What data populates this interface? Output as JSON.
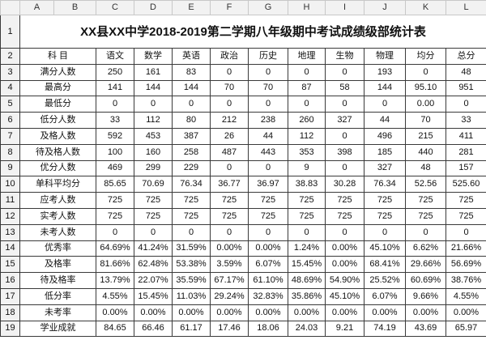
{
  "columns": [
    "A",
    "B",
    "C",
    "D",
    "E",
    "F",
    "G",
    "H",
    "I",
    "J",
    "K",
    "L"
  ],
  "title": "XX县XX中学2018-2019第二学期八年级期中考试成绩级部统计表",
  "header_row": {
    "label": "科 目",
    "subjects": [
      "语文",
      "数学",
      "英语",
      "政治",
      "历史",
      "地理",
      "生物",
      "物理",
      "均分",
      "总分"
    ]
  },
  "rows": [
    {
      "num": "1"
    },
    {
      "num": "2"
    },
    {
      "num": "3",
      "label": "满分人数",
      "label_center": false,
      "values": [
        "250",
        "161",
        "83",
        "0",
        "0",
        "0",
        "0",
        "193",
        "0",
        "48"
      ]
    },
    {
      "num": "4",
      "label": "最高分",
      "label_center": false,
      "values": [
        "141",
        "144",
        "144",
        "70",
        "70",
        "87",
        "58",
        "144",
        "95.10",
        "951"
      ]
    },
    {
      "num": "5",
      "label": "最低分",
      "label_center": false,
      "values": [
        "0",
        "0",
        "0",
        "0",
        "0",
        "0",
        "0",
        "0",
        "0.00",
        "0"
      ]
    },
    {
      "num": "6",
      "label": "低分人数",
      "label_center": false,
      "values": [
        "33",
        "112",
        "80",
        "212",
        "238",
        "260",
        "327",
        "44",
        "70",
        "33"
      ]
    },
    {
      "num": "7",
      "label": "及格人数",
      "label_center": false,
      "values": [
        "592",
        "453",
        "387",
        "26",
        "44",
        "112",
        "0",
        "496",
        "215",
        "411"
      ]
    },
    {
      "num": "8",
      "label": "待及格人数",
      "label_center": false,
      "values": [
        "100",
        "160",
        "258",
        "487",
        "443",
        "353",
        "398",
        "185",
        "440",
        "281"
      ]
    },
    {
      "num": "9",
      "label": "优分人数",
      "label_center": false,
      "values": [
        "469",
        "299",
        "229",
        "0",
        "0",
        "9",
        "0",
        "327",
        "48",
        "157"
      ]
    },
    {
      "num": "10",
      "label": "单科平均分",
      "label_center": false,
      "values": [
        "85.65",
        "70.69",
        "76.34",
        "36.77",
        "36.97",
        "38.83",
        "30.28",
        "76.34",
        "52.56",
        "525.60"
      ]
    },
    {
      "num": "11",
      "label": "应考人数",
      "label_center": false,
      "values": [
        "725",
        "725",
        "725",
        "725",
        "725",
        "725",
        "725",
        "725",
        "725",
        "725"
      ]
    },
    {
      "num": "12",
      "label": "实考人数",
      "label_center": false,
      "values": [
        "725",
        "725",
        "725",
        "725",
        "725",
        "725",
        "725",
        "725",
        "725",
        "725"
      ]
    },
    {
      "num": "13",
      "label": "未考人数",
      "label_center": false,
      "values": [
        "0",
        "0",
        "0",
        "0",
        "0",
        "0",
        "0",
        "0",
        "0",
        "0"
      ]
    },
    {
      "num": "14",
      "label": "优秀率",
      "label_center": true,
      "values": [
        "64.69%",
        "41.24%",
        "31.59%",
        "0.00%",
        "0.00%",
        "1.24%",
        "0.00%",
        "45.10%",
        "6.62%",
        "21.66%"
      ]
    },
    {
      "num": "15",
      "label": "及格率",
      "label_center": true,
      "values": [
        "81.66%",
        "62.48%",
        "53.38%",
        "3.59%",
        "6.07%",
        "15.45%",
        "0.00%",
        "68.41%",
        "29.66%",
        "56.69%"
      ]
    },
    {
      "num": "16",
      "label": "待及格率",
      "label_center": true,
      "values": [
        "13.79%",
        "22.07%",
        "35.59%",
        "67.17%",
        "61.10%",
        "48.69%",
        "54.90%",
        "25.52%",
        "60.69%",
        "38.76%"
      ]
    },
    {
      "num": "17",
      "label": "低分率",
      "label_center": true,
      "values": [
        "4.55%",
        "15.45%",
        "11.03%",
        "29.24%",
        "32.83%",
        "35.86%",
        "45.10%",
        "6.07%",
        "9.66%",
        "4.55%"
      ]
    },
    {
      "num": "18",
      "label": "未考率",
      "label_center": true,
      "values": [
        "0.00%",
        "0.00%",
        "0.00%",
        "0.00%",
        "0.00%",
        "0.00%",
        "0.00%",
        "0.00%",
        "0.00%",
        "0.00%"
      ]
    },
    {
      "num": "19",
      "label": "学业成就",
      "label_center": true,
      "values": [
        "84.65",
        "66.46",
        "61.17",
        "17.46",
        "18.06",
        "24.03",
        "9.21",
        "74.19",
        "43.69",
        "65.97"
      ]
    }
  ]
}
